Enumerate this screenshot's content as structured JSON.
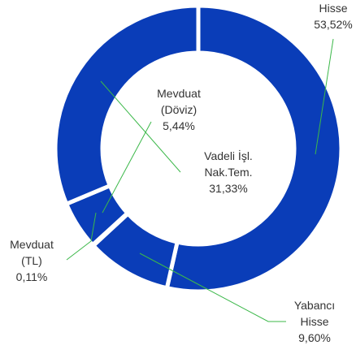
{
  "chart_data": {
    "type": "donut",
    "categories": [
      "Hisse",
      "Yabancı Hisse",
      "Mevduat (TL)",
      "Mevduat (Döviz)",
      "Vadeli İşl. Nak.Tem."
    ],
    "values": [
      53.52,
      9.6,
      0.11,
      5.44,
      31.33
    ],
    "value_labels": [
      "53,52%",
      "9,60%",
      "0,11%",
      "5,44%",
      "31,33%"
    ],
    "color": "#0a3db8"
  }
}
